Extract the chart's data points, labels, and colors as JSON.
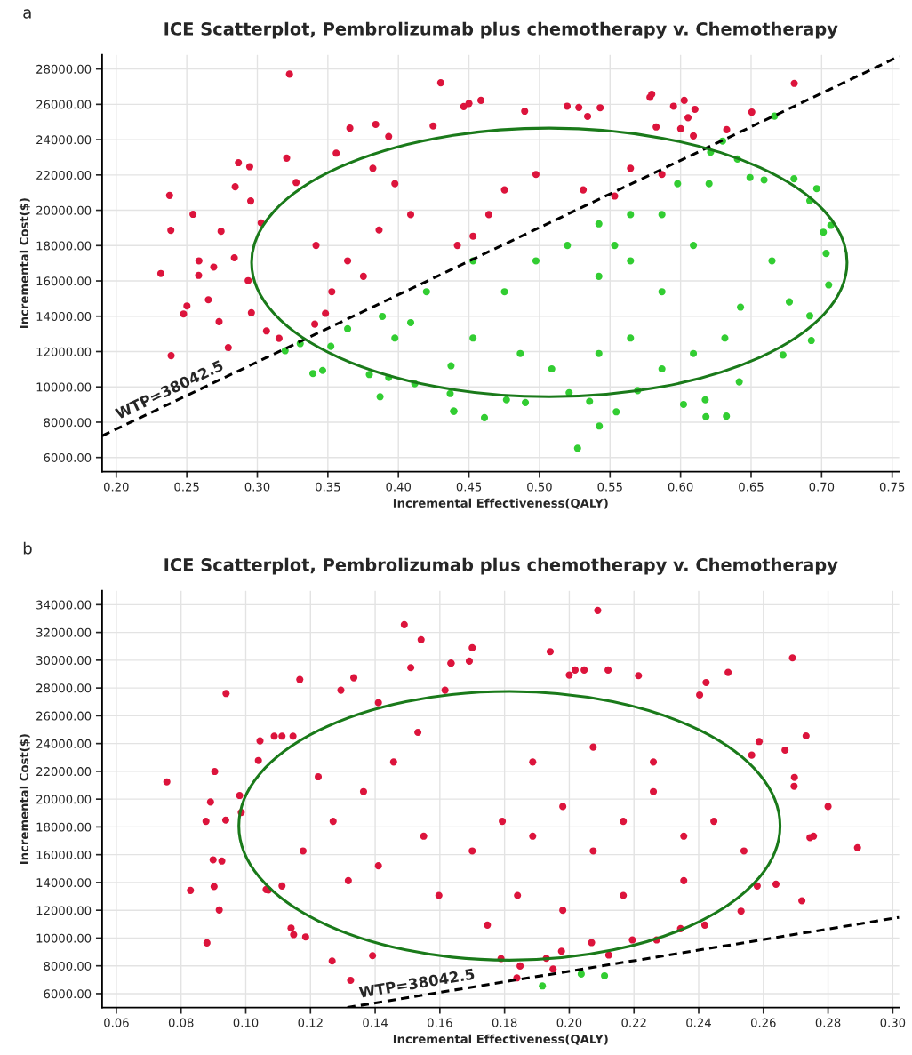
{
  "chart_data": [
    {
      "type": "scatter",
      "title": "ICE Scatterplot, Pembrolizumab plus chemotherapy v. Chemotherapy",
      "xlabel": "Incremental Effectiveness(QALY)",
      "ylabel": "Incremental Cost($)",
      "grid": true,
      "xlim": [
        0.19,
        0.755
      ],
      "ylim": [
        5200,
        28800
      ],
      "xticks": [
        {
          "value": 0.2,
          "label": "0.20"
        },
        {
          "value": 0.25,
          "label": "0.25"
        },
        {
          "value": 0.3,
          "label": "0.30"
        },
        {
          "value": 0.35,
          "label": "0.35"
        },
        {
          "value": 0.4,
          "label": "0.40"
        },
        {
          "value": 0.45,
          "label": "0.45"
        },
        {
          "value": 0.5,
          "label": "0.50"
        },
        {
          "value": 0.55,
          "label": "0.55"
        },
        {
          "value": 0.6,
          "label": "0.60"
        },
        {
          "value": 0.65,
          "label": "0.65"
        },
        {
          "value": 0.7,
          "label": "0.70"
        },
        {
          "value": 0.75,
          "label": "0.75"
        }
      ],
      "yticks": [
        {
          "value": 6000,
          "label": "6000.00"
        },
        {
          "value": 8000,
          "label": "8000.00"
        },
        {
          "value": 10000,
          "label": "10000.00"
        },
        {
          "value": 12000,
          "label": "12000.00"
        },
        {
          "value": 14000,
          "label": "14000.00"
        },
        {
          "value": 16000,
          "label": "16000.00"
        },
        {
          "value": 18000,
          "label": "18000.00"
        },
        {
          "value": 20000,
          "label": "20000.00"
        },
        {
          "value": 22000,
          "label": "22000.00"
        },
        {
          "value": 24000,
          "label": "24000.00"
        },
        {
          "value": 26000,
          "label": "26000.00"
        },
        {
          "value": 28000,
          "label": "28000.00"
        }
      ],
      "annotations": [
        "a",
        "WTP=38042.5"
      ],
      "series": [
        {
          "type": "scatter",
          "marker": "circle",
          "color": "#dc143c",
          "x": [
            0.2316,
            0.2378,
            0.2387,
            0.2389,
            0.2544,
            0.2586,
            0.2584,
            0.2501,
            0.2477,
            0.2743,
            0.2691,
            0.2653,
            0.2729,
            0.2794,
            0.2843,
            0.2866,
            0.2946,
            0.2953,
            0.2958,
            0.2935,
            0.2837,
            0.3208,
            0.3228,
            0.3027,
            0.3065,
            0.3154,
            0.3275,
            0.3559,
            0.3656,
            0.3839,
            0.3931,
            0.43,
            0.4246,
            0.3416,
            0.364,
            0.3863,
            0.4087,
            0.3975,
            0.3819,
            0.3528,
            0.3752,
            0.3407,
            0.3483,
            0.45,
            0.4585,
            0.4463,
            0.4895,
            0.5196,
            0.5279,
            0.543,
            0.5341,
            0.5796,
            0.5783,
            0.595,
            0.6026,
            0.6102,
            0.6053,
            0.6505,
            0.6327,
            0.6806,
            0.5827,
            0.6001,
            0.6091,
            0.4752,
            0.4975,
            0.531,
            0.5533,
            0.4529,
            0.4641,
            0.4418,
            0.5645,
            0.5868
          ],
          "values": [
            16418,
            20841,
            18865,
            11768,
            19774,
            17135,
            16313,
            14583,
            14128,
            18813,
            16785,
            14932,
            13691,
            12223,
            21330,
            22694,
            22466,
            20526,
            14198,
            16016,
            17310,
            22956,
            27710,
            19285,
            13167,
            12747,
            21575,
            23235,
            24651,
            24861,
            24179,
            27221,
            24774,
            18009,
            17135,
            18883,
            19757,
            21505,
            22379,
            15387,
            16261,
            13552,
            14163,
            26050,
            26224,
            25875,
            25613,
            25893,
            25823,
            25805,
            25316,
            26574,
            26399,
            25893,
            26224,
            25717,
            25245,
            25560,
            24564,
            27186,
            24721,
            24616,
            24214,
            21156,
            22030,
            21156,
            20806,
            18533,
            19757,
            18009,
            22379,
            22030
          ]
        },
        {
          "type": "scatter",
          "marker": "circle",
          "color": "#32cd32",
          "x": [
            0.3197,
            0.3394,
            0.3463,
            0.3304,
            0.3521,
            0.387,
            0.3794,
            0.3931,
            0.4116,
            0.4394,
            0.4367,
            0.3886,
            0.4087,
            0.4199,
            0.364,
            0.3975,
            0.461,
            0.4391,
            0.4766,
            0.49,
            0.5355,
            0.527,
            0.5424,
            0.5544,
            0.521,
            0.5696,
            0.6021,
            0.6175,
            0.618,
            0.6325,
            0.6416,
            0.6726,
            0.6927,
            0.6916,
            0.705,
            0.7032,
            0.7012,
            0.7065,
            0.6965,
            0.6916,
            0.6804,
            0.6771,
            0.6666,
            0.6592,
            0.6492,
            0.6298,
            0.6213,
            0.6403,
            0.6648,
            0.6425,
            0.6314,
            0.6091,
            0.5868,
            0.5645,
            0.5421,
            0.5087,
            0.4864,
            0.4529,
            0.4373,
            0.5421,
            0.5645,
            0.5198,
            0.4975,
            0.4752,
            0.5868,
            0.6091,
            0.5868,
            0.5645,
            0.5421,
            0.6202,
            0.5979,
            0.5533,
            0.4529
          ],
          "values": [
            12048,
            10755,
            10930,
            12450,
            12293,
            9444,
            10702,
            10527,
            10178,
            8622,
            9618,
            13989,
            13639,
            15387,
            13289,
            12765,
            8255,
            8622,
            9269,
            9112,
            9181,
            6524,
            7783,
            8587,
            9671,
            9793,
            9007,
            9269,
            8307,
            8342,
            10283,
            11803,
            12625,
            14023,
            15771,
            17554,
            18760,
            19145,
            21225,
            20543,
            21785,
            14810,
            25333,
            21715,
            21855,
            23917,
            23288,
            22903,
            17135,
            14513,
            12765,
            11890,
            11017,
            12765,
            11890,
            11017,
            11890,
            12765,
            11191,
            16261,
            17135,
            18009,
            17135,
            15387,
            15387,
            18009,
            19757,
            19757,
            19233,
            21505,
            21505,
            18009,
            17135
          ]
        },
        {
          "type": "line",
          "color": "#000000",
          "line_style": "dashed",
          "x": [
            0.19,
            0.755
          ],
          "values": [
            7228,
            28722
          ]
        }
      ]
    },
    {
      "type": "scatter",
      "title": "ICE Scatterplot, Pembrolizumab plus chemotherapy v. Chemotherapy",
      "xlabel": "Incremental Effectiveness(QALY)",
      "ylabel": "Incremental Cost($)",
      "grid": true,
      "xlim": [
        0.0556,
        0.302
      ],
      "ylim": [
        5000,
        35000
      ],
      "xticks": [
        {
          "value": 0.06,
          "label": "0.06"
        },
        {
          "value": 0.08,
          "label": "0.08"
        },
        {
          "value": 0.1,
          "label": "0.10"
        },
        {
          "value": 0.12,
          "label": "0.12"
        },
        {
          "value": 0.14,
          "label": "0.14"
        },
        {
          "value": 0.16,
          "label": "0.16"
        },
        {
          "value": 0.18,
          "label": "0.18"
        },
        {
          "value": 0.2,
          "label": "0.20"
        },
        {
          "value": 0.22,
          "label": "0.22"
        },
        {
          "value": 0.24,
          "label": "0.24"
        },
        {
          "value": 0.26,
          "label": "0.26"
        },
        {
          "value": 0.28,
          "label": "0.28"
        },
        {
          "value": 0.3,
          "label": "0.30"
        }
      ],
      "yticks": [
        {
          "value": 6000,
          "label": "6000.00"
        },
        {
          "value": 8000,
          "label": "8000.00"
        },
        {
          "value": 10000,
          "label": "10000.00"
        },
        {
          "value": 12000,
          "label": "12000.00"
        },
        {
          "value": 14000,
          "label": "14000.00"
        },
        {
          "value": 16000,
          "label": "16000.00"
        },
        {
          "value": 18000,
          "label": "18000.00"
        },
        {
          "value": 20000,
          "label": "20000.00"
        },
        {
          "value": 22000,
          "label": "22000.00"
        },
        {
          "value": 24000,
          "label": "24000.00"
        },
        {
          "value": 26000,
          "label": "26000.00"
        },
        {
          "value": 28000,
          "label": "28000.00"
        },
        {
          "value": 30000,
          "label": "30000.00"
        },
        {
          "value": 32000,
          "label": "32000.00"
        },
        {
          "value": 34000,
          "label": "34000.00"
        }
      ],
      "annotations": [
        "b",
        "WTP=38042.5"
      ],
      "series": [
        {
          "type": "scatter",
          "marker": "circle",
          "color": "#dc143c",
          "x": [
            0.0756,
            0.0829,
            0.088,
            0.0877,
            0.0891,
            0.0904,
            0.0899,
            0.0902,
            0.0918,
            0.0938,
            0.0939,
            0.0926,
            0.1167,
            0.1334,
            0.1294,
            0.1324,
            0.1267,
            0.1185,
            0.1148,
            0.114,
            0.1392,
            0.149,
            0.1542,
            0.151,
            0.1634,
            0.1616,
            0.1044,
            0.1088,
            0.1112,
            0.1146,
            0.0981,
            0.0986,
            0.1039,
            0.1063,
            0.107,
            0.1112,
            0.1177,
            0.127,
            0.1364,
            0.1457,
            0.1224,
            0.1317,
            0.141,
            0.155,
            0.1597,
            0.1532,
            0.141,
            0.2088,
            0.17,
            0.1691,
            0.1941,
            0.1635,
            0.2,
            0.2018,
            0.2046,
            0.212,
            0.2214,
            0.269,
            0.2491,
            0.2423,
            0.2403,
            0.2732,
            0.2667,
            0.2587,
            0.2564,
            0.2696,
            0.2695,
            0.28,
            0.2891,
            0.2755,
            0.2744,
            0.2719,
            0.2639,
            0.2581,
            0.2531,
            0.2419,
            0.2344,
            0.227,
            0.2195,
            0.2122,
            0.2069,
            0.1976,
            0.1929,
            0.195,
            0.1848,
            0.1838,
            0.1789,
            0.254,
            0.2447,
            0.2354,
            0.226,
            0.2167,
            0.2074,
            0.198,
            0.1887,
            0.1793,
            0.17,
            0.1887,
            0.2074,
            0.226,
            0.184,
            0.2167,
            0.2354,
            0.198,
            0.1747
          ],
          "values": [
            21244,
            13430,
            9651,
            18404,
            19792,
            21991,
            15629,
            13707,
            12021,
            18490,
            27606,
            15543,
            28610,
            28738,
            27841,
            6961,
            8349,
            10078,
            10249,
            10718,
            8733,
            32559,
            31471,
            29464,
            29784,
            27841,
            24190,
            24532,
            24532,
            24532,
            20262,
            19045,
            22781,
            13494,
            13451,
            13750,
            16269,
            18404,
            20539,
            22674,
            21607,
            14134,
            15202,
            17337,
            13067,
            24809,
            26944,
            33584,
            30894,
            29933,
            30616,
            29784,
            28930,
            29293,
            29293,
            29293,
            28888,
            30168,
            29122,
            28396,
            27499,
            24553,
            23529,
            24148,
            23166,
            21564,
            20923,
            19472,
            16504,
            17337,
            17230,
            12683,
            13878,
            13750,
            11936,
            10932,
            10676,
            9864,
            9864,
            8776,
            9672,
            9053,
            8541,
            7772,
            7986,
            7132,
            8520,
            16269,
            18404,
            17337,
            20539,
            18404,
            16269,
            19472,
            17337,
            18404,
            16269,
            22674,
            23742,
            22674,
            13067,
            13067,
            14134,
            12000,
            10932
          ]
        },
        {
          "type": "scatter",
          "marker": "circle",
          "color": "#32cd32",
          "x": [
            0.1917,
            0.2037,
            0.2109
          ],
          "values": [
            6555,
            7409,
            7281
          ]
        },
        {
          "type": "line",
          "color": "#000000",
          "line_style": "dashed",
          "x": [
            0.1314,
            0.302
          ],
          "values": [
            5000,
            11489
          ]
        }
      ]
    }
  ]
}
